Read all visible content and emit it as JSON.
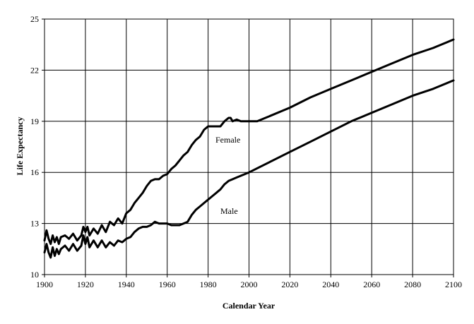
{
  "chart_data": {
    "type": "line",
    "title": "",
    "xlabel": "Calendar Year",
    "ylabel": "Life Expectancy",
    "xlim": [
      1900,
      2100
    ],
    "ylim": [
      10,
      25
    ],
    "xticks": [
      1900,
      1920,
      1940,
      1960,
      1980,
      2000,
      2020,
      2040,
      2060,
      2080,
      2100
    ],
    "yticks": [
      10,
      13,
      16,
      19,
      22,
      25
    ],
    "grid": true,
    "legend": "none",
    "series": [
      {
        "name": "Female",
        "x": [
          1900,
          1901,
          1902,
          1903,
          1904,
          1905,
          1906,
          1907,
          1908,
          1910,
          1912,
          1914,
          1916,
          1918,
          1919,
          1920,
          1921,
          1922,
          1924,
          1926,
          1928,
          1930,
          1932,
          1934,
          1936,
          1938,
          1940,
          1942,
          1944,
          1946,
          1948,
          1950,
          1952,
          1954,
          1956,
          1958,
          1960,
          1962,
          1964,
          1966,
          1968,
          1970,
          1972,
          1974,
          1976,
          1978,
          1980,
          1982,
          1984,
          1986,
          1988,
          1990,
          1991,
          1992,
          1994,
          1996,
          1998,
          2000,
          2002,
          2004,
          2006,
          2010,
          2020,
          2030,
          2040,
          2050,
          2060,
          2070,
          2080,
          2090,
          2100
        ],
        "y": [
          12.0,
          12.6,
          12.1,
          11.8,
          12.3,
          11.9,
          12.2,
          11.8,
          12.2,
          12.3,
          12.1,
          12.4,
          12.0,
          12.3,
          12.8,
          12.5,
          12.8,
          12.3,
          12.7,
          12.4,
          12.9,
          12.5,
          13.1,
          12.9,
          13.3,
          13.0,
          13.6,
          13.8,
          14.2,
          14.5,
          14.8,
          15.2,
          15.5,
          15.6,
          15.6,
          15.8,
          15.9,
          16.2,
          16.4,
          16.7,
          17.0,
          17.2,
          17.6,
          17.9,
          18.1,
          18.5,
          18.7,
          18.7,
          18.7,
          18.7,
          19.0,
          19.2,
          19.2,
          19.0,
          19.1,
          19.0,
          19.0,
          19.0,
          19.0,
          19.0,
          19.1,
          19.3,
          19.8,
          20.4,
          20.9,
          21.4,
          21.9,
          22.4,
          22.9,
          23.3,
          23.8
        ]
      },
      {
        "name": "Male",
        "x": [
          1900,
          1901,
          1902,
          1903,
          1904,
          1905,
          1906,
          1907,
          1908,
          1910,
          1912,
          1914,
          1916,
          1918,
          1919,
          1920,
          1921,
          1922,
          1924,
          1926,
          1928,
          1930,
          1932,
          1934,
          1936,
          1938,
          1940,
          1942,
          1944,
          1946,
          1948,
          1950,
          1952,
          1954,
          1956,
          1958,
          1960,
          1962,
          1964,
          1966,
          1968,
          1970,
          1972,
          1974,
          1976,
          1978,
          1980,
          1982,
          1984,
          1986,
          1988,
          1990,
          1992,
          1994,
          1996,
          1998,
          2000,
          2010,
          2020,
          2030,
          2040,
          2050,
          2060,
          2070,
          2080,
          2090,
          2100
        ],
        "y": [
          11.3,
          11.8,
          11.3,
          11.0,
          11.6,
          11.1,
          11.5,
          11.2,
          11.5,
          11.7,
          11.4,
          11.8,
          11.4,
          11.7,
          12.3,
          11.8,
          12.2,
          11.6,
          12.0,
          11.6,
          12.0,
          11.6,
          11.9,
          11.7,
          12.0,
          11.9,
          12.1,
          12.2,
          12.5,
          12.7,
          12.8,
          12.8,
          12.9,
          13.1,
          13.0,
          13.0,
          13.0,
          12.9,
          12.9,
          12.9,
          13.0,
          13.1,
          13.5,
          13.8,
          14.0,
          14.2,
          14.4,
          14.6,
          14.8,
          15.0,
          15.3,
          15.5,
          15.6,
          15.7,
          15.8,
          15.9,
          16.0,
          16.6,
          17.2,
          17.8,
          18.4,
          19.0,
          19.5,
          20.0,
          20.5,
          20.9,
          21.4
        ]
      }
    ]
  }
}
